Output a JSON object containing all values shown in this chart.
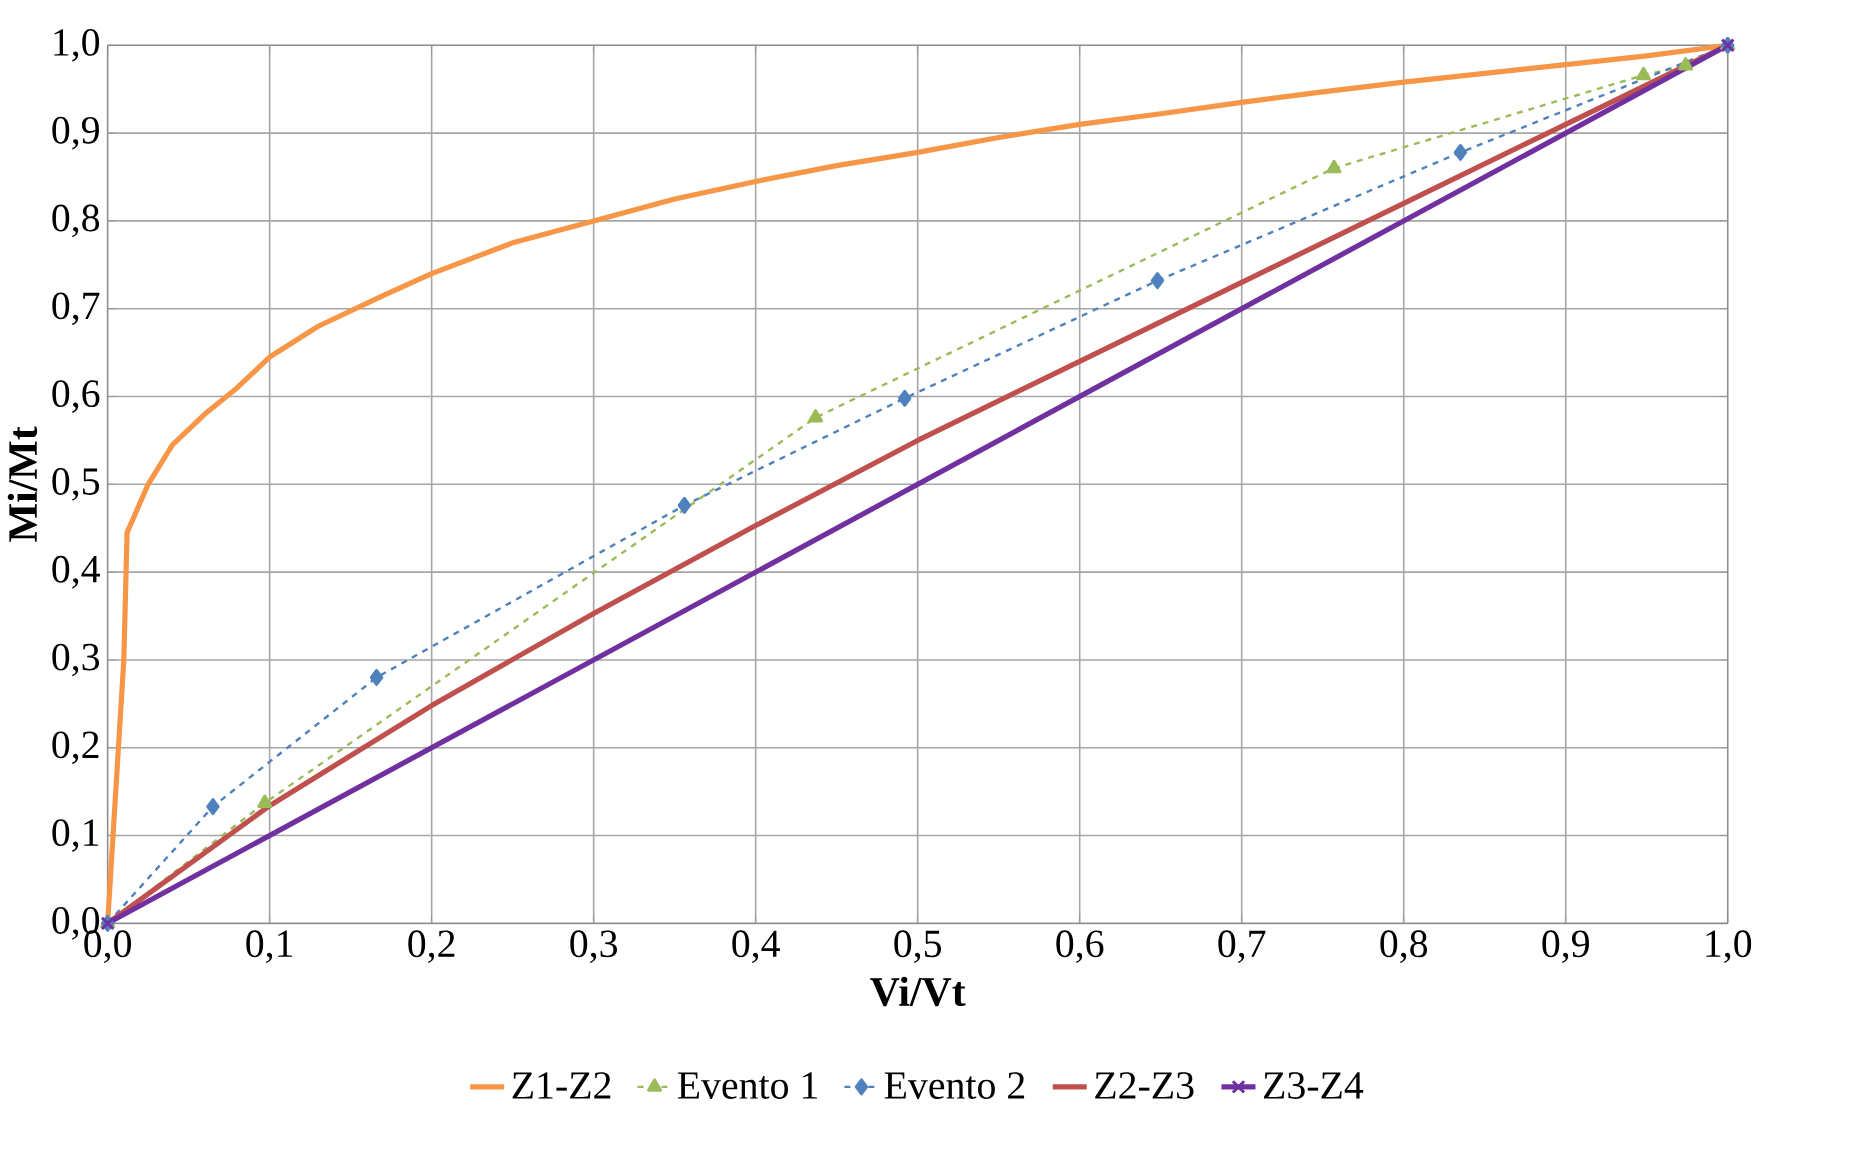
{
  "chart_data": {
    "type": "line",
    "xlabel": "Vi/Vt",
    "ylabel": "Mi/Mt",
    "xlim": [
      0,
      1
    ],
    "ylim": [
      0,
      1
    ],
    "xticks": [
      {
        "value": 0,
        "label": "0,0"
      },
      {
        "value": 0.1,
        "label": "0,1"
      },
      {
        "value": 0.2,
        "label": "0,2"
      },
      {
        "value": 0.3,
        "label": "0,3"
      },
      {
        "value": 0.4,
        "label": "0,4"
      },
      {
        "value": 0.5,
        "label": "0,5"
      },
      {
        "value": 0.6,
        "label": "0,6"
      },
      {
        "value": 0.7,
        "label": "0,7"
      },
      {
        "value": 0.8,
        "label": "0,8"
      },
      {
        "value": 0.9,
        "label": "0,9"
      },
      {
        "value": 1,
        "label": "1,0"
      }
    ],
    "yticks": [
      {
        "value": 0,
        "label": "0,0"
      },
      {
        "value": 0.1,
        "label": "0,1"
      },
      {
        "value": 0.2,
        "label": "0,2"
      },
      {
        "value": 0.3,
        "label": "0,3"
      },
      {
        "value": 0.4,
        "label": "0,4"
      },
      {
        "value": 0.5,
        "label": "0,5"
      },
      {
        "value": 0.6,
        "label": "0,6"
      },
      {
        "value": 0.7,
        "label": "0,7"
      },
      {
        "value": 0.8,
        "label": "0,8"
      },
      {
        "value": 0.9,
        "label": "0,9"
      },
      {
        "value": 1,
        "label": "1,0"
      }
    ],
    "grid": true,
    "legend": "bottom",
    "series": [
      {
        "name": "Z1-Z2",
        "color": "#f79646",
        "marker": "none",
        "line_style": "solid",
        "x": [
          0,
          0.01,
          0.012,
          0.025,
          0.04,
          0.06,
          0.08,
          0.1,
          0.13,
          0.17,
          0.2,
          0.25,
          0.3,
          0.35,
          0.4,
          0.45,
          0.5,
          0.55,
          0.6,
          0.65,
          0.7,
          0.75,
          0.8,
          0.85,
          0.9,
          0.95,
          1
        ],
        "values": [
          0,
          0.3,
          0.445,
          0.5,
          0.545,
          0.58,
          0.61,
          0.645,
          0.68,
          0.715,
          0.74,
          0.775,
          0.8,
          0.825,
          0.845,
          0.863,
          0.878,
          0.895,
          0.91,
          0.922,
          0.935,
          0.947,
          0.958,
          0.968,
          0.978,
          0.988,
          1
        ]
      },
      {
        "name": "Evento 1",
        "color": "#9bbb59",
        "marker": "triangle",
        "line_style": "dashed",
        "x": [
          0,
          0.097,
          0.437,
          0.757,
          0.948,
          0.974,
          1
        ],
        "values": [
          0,
          0.137,
          0.576,
          0.86,
          0.966,
          0.977,
          1
        ]
      },
      {
        "name": "Evento 2",
        "color": "#4f81bd",
        "marker": "diamond",
        "line_style": "dashed",
        "x": [
          0,
          0.065,
          0.166,
          0.356,
          0.492,
          0.648,
          0.835,
          1
        ],
        "values": [
          0,
          0.133,
          0.28,
          0.476,
          0.598,
          0.732,
          0.878,
          1
        ]
      },
      {
        "name": "Z2-Z3",
        "color": "#c0504d",
        "marker": "none",
        "line_style": "solid",
        "x": [
          0,
          0.1,
          0.2,
          0.3,
          0.4,
          0.5,
          0.6,
          0.7,
          0.8,
          0.9,
          1
        ],
        "values": [
          0,
          0.134,
          0.248,
          0.353,
          0.453,
          0.55,
          0.64,
          0.73,
          0.82,
          0.91,
          1
        ]
      },
      {
        "name": "Z3-Z4",
        "color": "#7030a0",
        "marker": "cross",
        "line_style": "solid",
        "x": [
          0,
          1
        ],
        "values": [
          0,
          1
        ]
      }
    ]
  }
}
